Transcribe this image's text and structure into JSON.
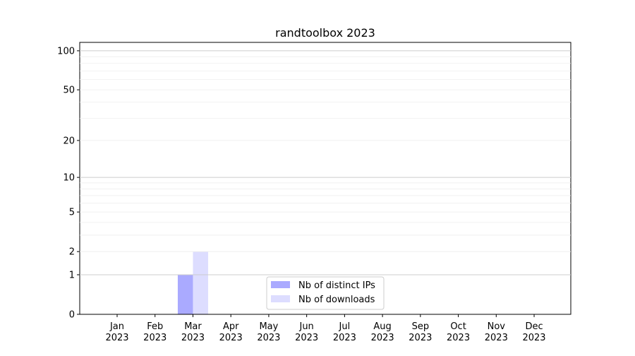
{
  "chart_data": {
    "type": "bar",
    "title": "randtoolbox 2023",
    "xlabel": "",
    "ylabel": "",
    "yscale": "log(1+y)",
    "ylim": [
      0,
      116
    ],
    "grid": true,
    "legend_placement": "lower-center",
    "categories": [
      "Jan\n2023",
      "Feb\n2023",
      "Mar\n2023",
      "Apr\n2023",
      "May\n2023",
      "Jun\n2023",
      "Jul\n2023",
      "Aug\n2023",
      "Sep\n2023",
      "Oct\n2023",
      "Nov\n2023",
      "Dec\n2023"
    ],
    "yticks": [
      0,
      1,
      2,
      5,
      10,
      20,
      50,
      100
    ],
    "series": [
      {
        "name": "Nb of distinct IPs",
        "color": "#aaaaff",
        "values": [
          0,
          0,
          1,
          0,
          0,
          0,
          0,
          0,
          0,
          0,
          0,
          0
        ]
      },
      {
        "name": "Nb of downloads",
        "color": "#ddddff",
        "values": [
          0,
          0,
          2,
          0,
          0,
          0,
          0,
          0,
          0,
          0,
          0,
          0
        ]
      }
    ]
  }
}
